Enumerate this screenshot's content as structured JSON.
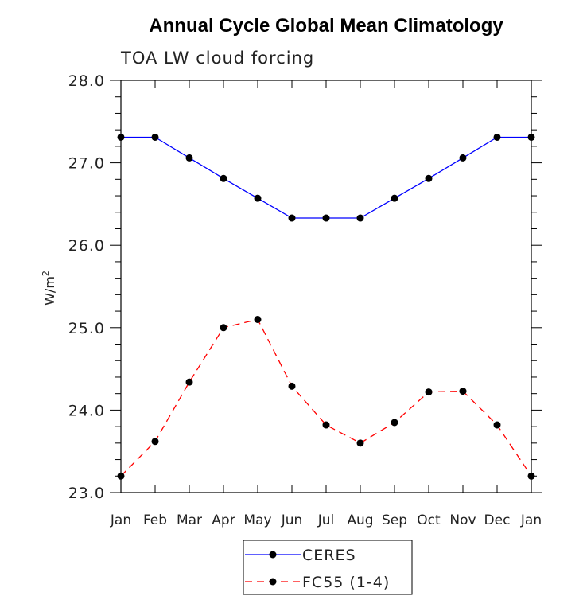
{
  "chart_data": {
    "type": "line",
    "title": "Annual Cycle Global Mean Climatology",
    "subtitle": "TOA LW cloud forcing",
    "xlabel": "",
    "ylabel": "W/m",
    "ylabel_superscript": "2",
    "categories": [
      "Jan",
      "Feb",
      "Mar",
      "Apr",
      "May",
      "Jun",
      "Jul",
      "Aug",
      "Sep",
      "Oct",
      "Nov",
      "Dec",
      "Jan"
    ],
    "ylim": [
      23.0,
      28.0
    ],
    "yticks": [
      "23.0",
      "24.0",
      "25.0",
      "26.0",
      "27.0",
      "28.0"
    ],
    "series": [
      {
        "name": "CERES",
        "color": "#0000ff",
        "dash": "solid",
        "marker": "circle",
        "values": [
          27.31,
          27.31,
          27.06,
          26.81,
          26.57,
          26.33,
          26.33,
          26.33,
          26.57,
          26.81,
          27.06,
          27.31,
          27.31
        ]
      },
      {
        "name": "FC55 (1-4)",
        "color": "#ff0000",
        "dash": "dashed",
        "marker": "circle",
        "values": [
          23.2,
          23.62,
          24.34,
          25.0,
          25.1,
          24.29,
          23.82,
          23.6,
          23.85,
          24.22,
          24.23,
          23.82,
          23.2
        ]
      }
    ],
    "legend": {
      "position": "bottom-center"
    }
  }
}
